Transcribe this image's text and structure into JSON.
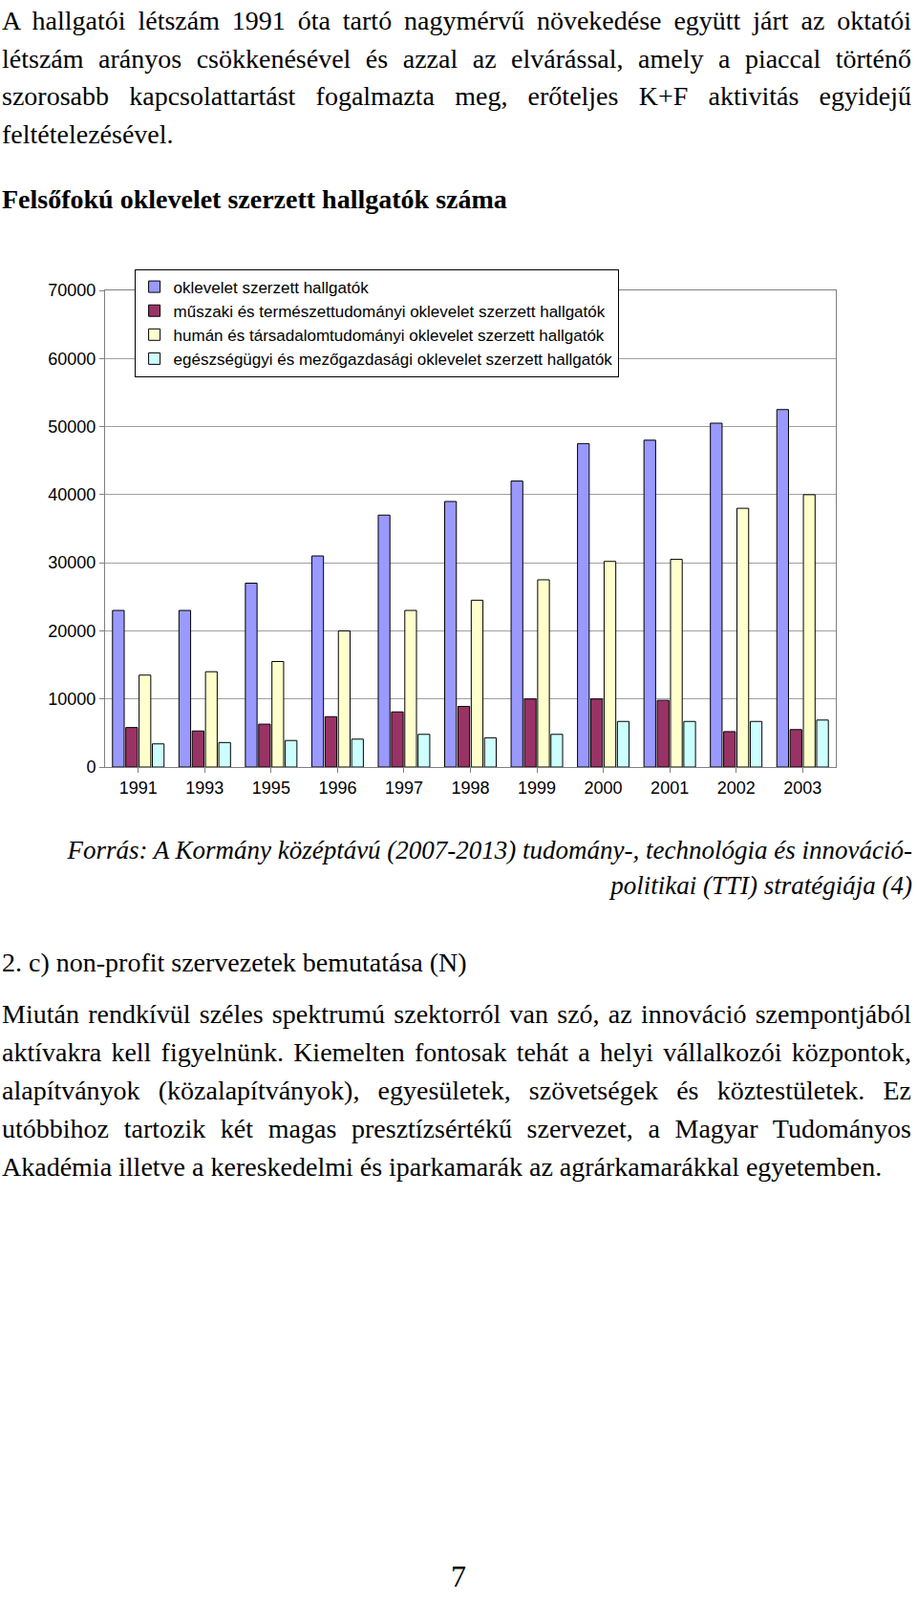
{
  "intro": "A hallgatói létszám 1991 óta tartó nagymérvű növekedése együtt járt az oktatói létszám arányos csökkenésével és azzal az elvárással, amely a piaccal történő szorosabb kapcsolattartást fogalmazta meg, erőteljes K+F aktivitás egyidejű feltételezésével.",
  "chart_heading": "Felsőfokú oklevelet szerzett hallgatók száma",
  "chart_data": {
    "type": "bar",
    "categories": [
      "1991",
      "1993",
      "1995",
      "1996",
      "1997",
      "1998",
      "1999",
      "2000",
      "2001",
      "2002",
      "2003"
    ],
    "series": [
      {
        "name": "oklevelet szerzett hallgatók",
        "color": "#9999ff",
        "values": [
          23000,
          23000,
          27000,
          31000,
          37000,
          39000,
          42000,
          47500,
          48000,
          50500,
          52500
        ]
      },
      {
        "name": "műszaki és természettudományi oklevelet szerzett hallgatók",
        "color": "#993366",
        "values": [
          5800,
          5300,
          6300,
          7400,
          8100,
          8900,
          10000,
          10000,
          9800,
          5200,
          5500
        ]
      },
      {
        "name": "humán és társadalomtudományi oklevelet szerzett hallgatók",
        "color": "#ffffcc",
        "values": [
          13500,
          14000,
          15500,
          20000,
          23000,
          24500,
          27500,
          30200,
          30500,
          38000,
          40000
        ]
      },
      {
        "name": "egészségügyi és mezőgazdasági oklevelet szerzett hallgatók",
        "color": "#ccffff",
        "values": [
          3400,
          3600,
          3900,
          4100,
          4800,
          4300,
          4800,
          6700,
          6700,
          6700,
          6900
        ]
      }
    ],
    "ylim": [
      0,
      70000
    ],
    "yticks": [
      0,
      10000,
      20000,
      30000,
      40000,
      50000,
      60000,
      70000
    ],
    "grid": true,
    "legend": "top-left"
  },
  "source": "Forrás: A Kormány középtávú (2007-2013) tudomány-, technológia és innováció-politikai (TTI) stratégiája (4)",
  "section_heading": "2. c) non-profit szervezetek bemutatása (N)",
  "body": "Miután rendkívül széles spektrumú szektorról van szó, az innováció szempontjából aktívakra kell figyelnünk. Kiemelten fontosak tehát a helyi vállalkozói központok, alapítványok (közalapítványok), egyesületek, szövetségek és köztestületek. Ez utóbbihoz tartozik két magas presztízsértékű szervezet, a Magyar Tudományos Akadémia illetve a kereskedelmi és iparkamarák az agrárkamarákkal egyetemben.",
  "page_number": "7"
}
